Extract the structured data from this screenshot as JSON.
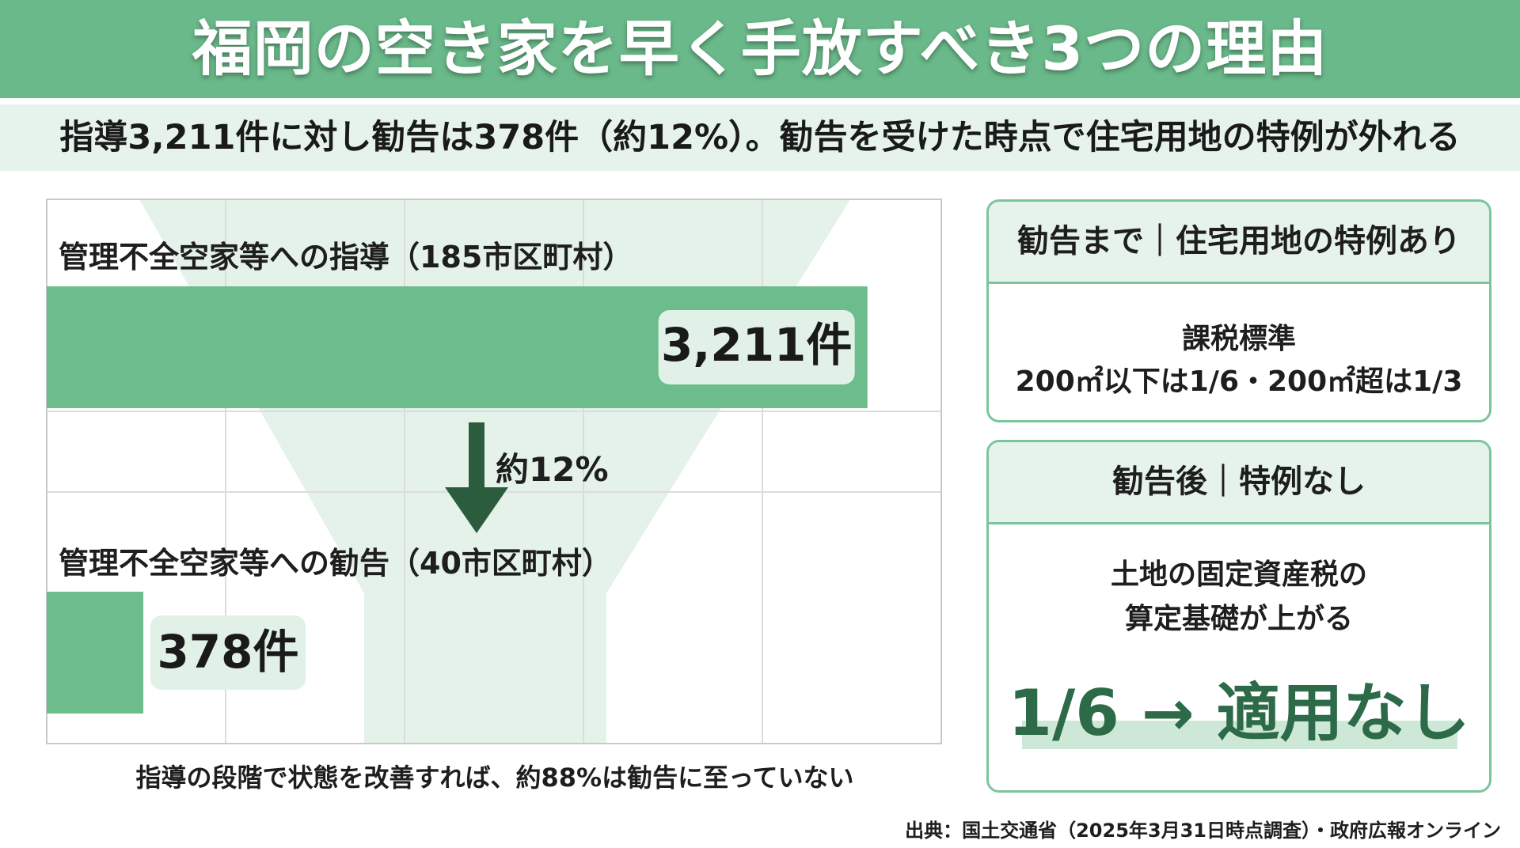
{
  "title": "福岡の空き家を早く手放すべき3つの理由",
  "subtitle": "指導3,211件に対し勧告は378件（約12%）。勧告を受けた時点で住宅用地の特例が外れる",
  "colors": {
    "title_band": "#6ab98a",
    "bar": "#6cbc8c",
    "funnel": "#e4f2e9",
    "arrow": "#2c5c3e",
    "label_box": "#e2f1e7",
    "card_border": "#7cc59b",
    "highlight_text": "#2d6a48"
  },
  "chart_data": {
    "type": "bar",
    "orientation": "horizontal",
    "categories": [
      "管理不全空家等への指導（185市区町村）",
      "管理不全空家等への勧告（40市区町村）"
    ],
    "values": [
      3211,
      378
    ],
    "value_labels": [
      "3,211件",
      "378件"
    ],
    "arrow_label": "約12%",
    "xlim": [
      0,
      3500
    ],
    "grid": true,
    "caption": "指導の段階で状態を改善すれば、約88%は勧告に至っていない"
  },
  "cards": [
    {
      "header": "勧告まで｜住宅用地の特例あり",
      "line1": "課税標準",
      "line2": "200㎡以下は1/6・200㎡超は1/3"
    },
    {
      "header": "勧告後｜特例なし",
      "line1": "土地の固定資産税の",
      "line2": "算定基礎が上がる",
      "highlight": "1/6 → 適用なし"
    }
  ],
  "source": "出典：国土交通省（2025年3月31日時点調査）・政府広報オンライン"
}
